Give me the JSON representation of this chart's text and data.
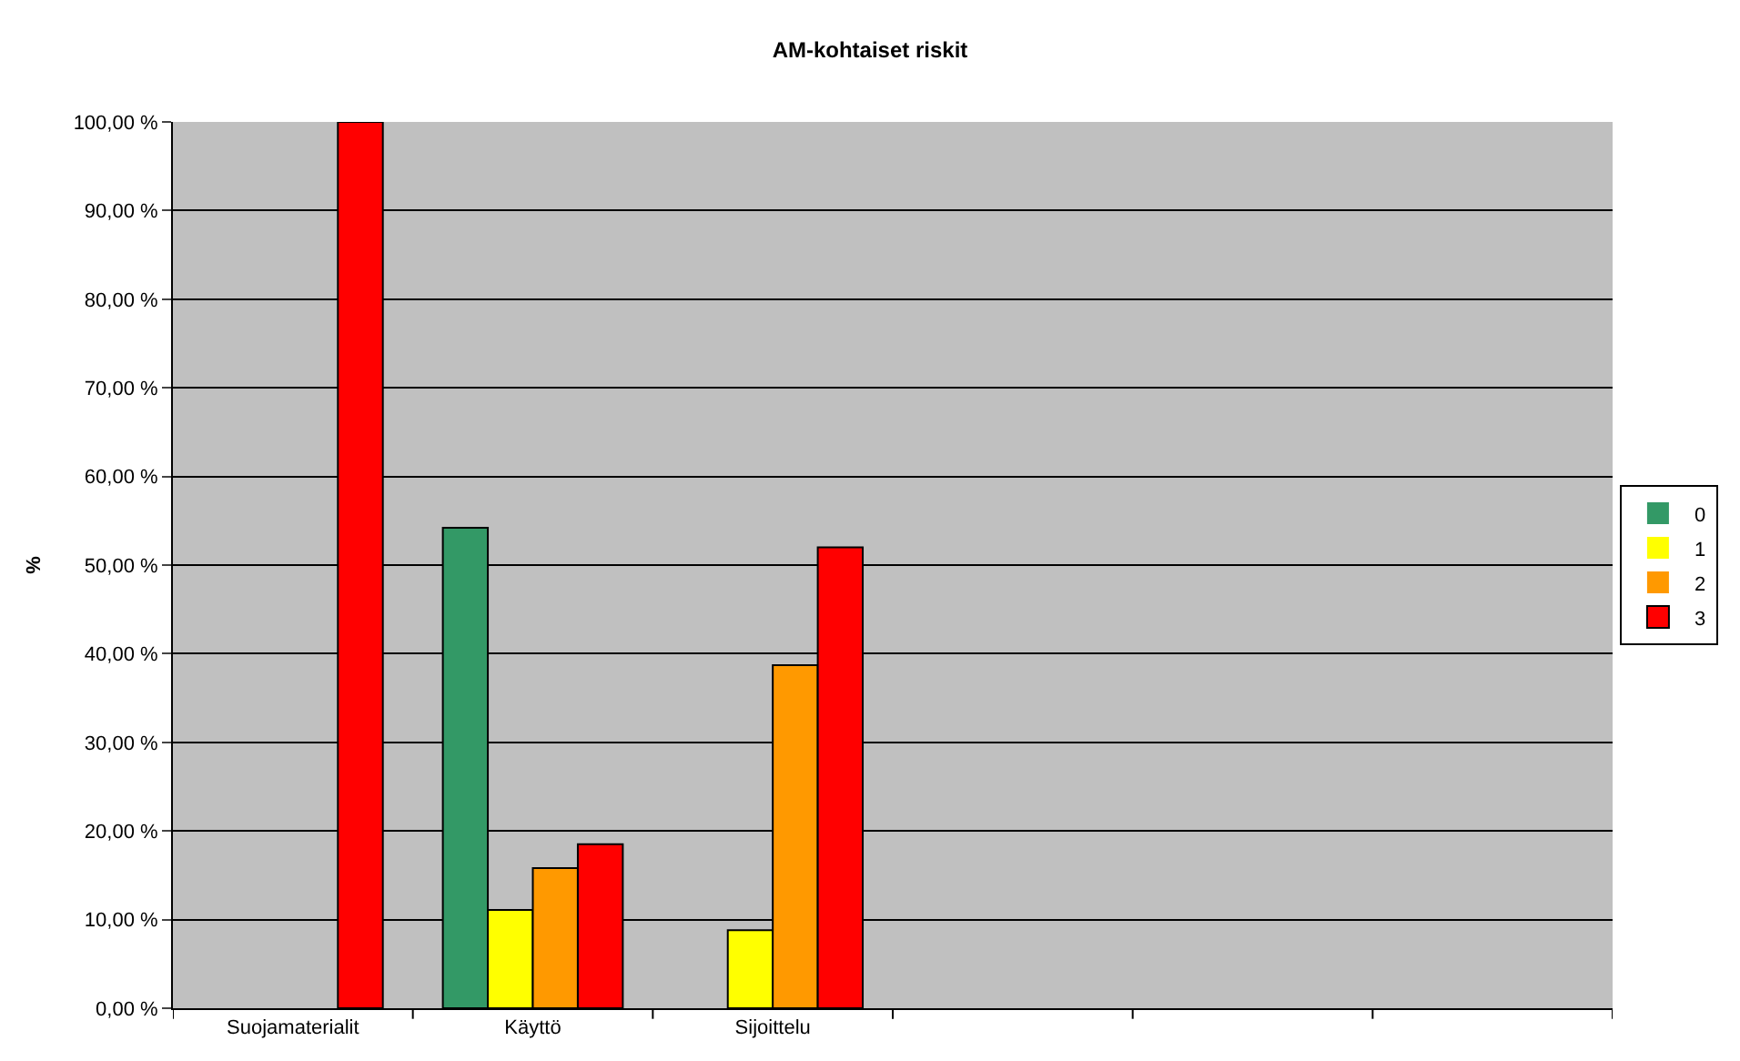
{
  "chart_data": {
    "type": "bar",
    "title": "AM-kohtaiset riskit",
    "ylabel": "%",
    "categories": [
      "Suojamaterialit",
      "Käyttö",
      "Sijoittelu",
      null,
      null,
      null
    ],
    "series": [
      {
        "name": "0",
        "color": "#339966",
        "values": [
          0,
          54.2,
          0,
          null,
          null,
          null
        ]
      },
      {
        "name": "1",
        "color": "#ffff00",
        "values": [
          0,
          11.1,
          8.8,
          null,
          null,
          null
        ]
      },
      {
        "name": "2",
        "color": "#ff9900",
        "values": [
          0,
          15.8,
          38.7,
          null,
          null,
          null
        ]
      },
      {
        "name": "3",
        "color": "#ff0000",
        "values": [
          100,
          18.5,
          52.0,
          null,
          null,
          null
        ]
      }
    ],
    "ylim": [
      0,
      100
    ],
    "yticks": [
      {
        "value": 0,
        "label": "0,00 %"
      },
      {
        "value": 10,
        "label": "10,00 %"
      },
      {
        "value": 20,
        "label": "20,00 %"
      },
      {
        "value": 30,
        "label": "30,00 %"
      },
      {
        "value": 40,
        "label": "40,00 %"
      },
      {
        "value": 50,
        "label": "50,00 %"
      },
      {
        "value": 60,
        "label": "60,00 %"
      },
      {
        "value": 70,
        "label": "70,00 %"
      },
      {
        "value": 80,
        "label": "80,00 %"
      },
      {
        "value": 90,
        "label": "90,00 %"
      },
      {
        "value": 100,
        "label": "100,00 %"
      }
    ],
    "grid": "y",
    "legend": "right"
  }
}
